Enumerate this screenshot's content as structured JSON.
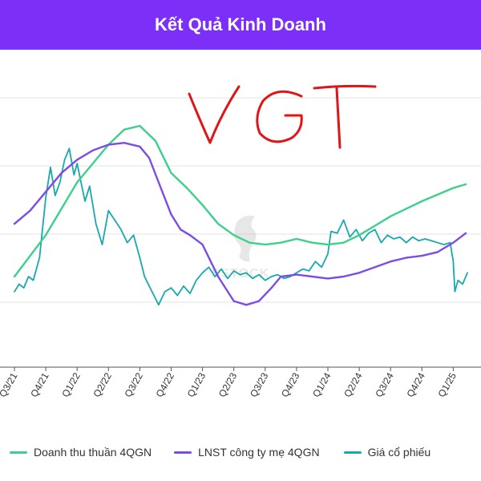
{
  "header": {
    "title": "Kết Quả Kinh Doanh"
  },
  "annotation": {
    "handwritten_text": "VGT",
    "color": "#e01515"
  },
  "watermark": {
    "text": "SSTOCK"
  },
  "colors": {
    "header_bg": "#7b2ff7",
    "grid": "#e3e3e3"
  },
  "chart_data": {
    "type": "line",
    "title": "Kết Quả Kinh Doanh",
    "xlabel": "",
    "ylabel": "",
    "x_tick_labels": [
      "Q3/21",
      "Q4/21",
      "Q1/22",
      "Q2/22",
      "Q3/22",
      "Q4/22",
      "Q1/23",
      "Q2/23",
      "Q3/23",
      "Q4/23",
      "Q1/24",
      "Q2/24",
      "Q3/24",
      "Q4/24",
      "Q1/25"
    ],
    "y_tick_labels_visible": false,
    "y_gridlines": 4,
    "grid": true,
    "legend_position": "bottom",
    "series": [
      {
        "name": "Doanh thu thuần 4QGN",
        "color": "#3dd08a",
        "x": [
          0.0,
          1.0,
          2.0,
          3.0,
          3.5,
          4.0,
          4.5,
          5.0,
          5.5,
          6.0,
          6.5,
          7.0,
          7.5,
          8.0,
          8.5,
          9.0,
          9.5,
          10.0,
          10.5,
          11.0,
          11.5,
          12.0,
          13.0,
          14.0,
          14.4
        ],
        "values": [
          20,
          42,
          70,
          90,
          98,
          100,
          92,
          75,
          67,
          58,
          48,
          42,
          38,
          37,
          38,
          40,
          38,
          37,
          38,
          42,
          47,
          52,
          60,
          67,
          69
        ]
      },
      {
        "name": "LNST công ty mẹ 4QGN",
        "color": "#7b4ce6",
        "x": [
          0.0,
          0.5,
          1.0,
          1.5,
          2.0,
          2.5,
          3.0,
          3.5,
          4.0,
          4.3,
          4.6,
          5.0,
          5.3,
          5.6,
          6.0,
          6.5,
          7.0,
          7.4,
          7.8,
          8.2,
          8.5,
          9.0,
          9.5,
          10.0,
          10.5,
          11.0,
          11.5,
          12.0,
          12.5,
          13.0,
          13.5,
          14.0,
          14.4
        ],
        "values": [
          48,
          55,
          65,
          75,
          82,
          87,
          90,
          91,
          89,
          83,
          70,
          53,
          45,
          42,
          37,
          20,
          7,
          5,
          7,
          14,
          20,
          21,
          20,
          19,
          20,
          22,
          25,
          28,
          30,
          31,
          33,
          38,
          43
        ]
      },
      {
        "name": "Giá cổ phiếu",
        "color": "#17a9ae",
        "x": [
          0.0,
          0.15,
          0.3,
          0.45,
          0.6,
          0.8,
          1.0,
          1.15,
          1.3,
          1.45,
          1.6,
          1.75,
          1.9,
          2.0,
          2.1,
          2.25,
          2.4,
          2.6,
          2.8,
          3.0,
          3.2,
          3.4,
          3.6,
          3.8,
          4.0,
          4.15,
          4.3,
          4.45,
          4.6,
          4.8,
          5.0,
          5.2,
          5.4,
          5.6,
          5.8,
          6.0,
          6.2,
          6.4,
          6.6,
          6.8,
          7.0,
          7.2,
          7.4,
          7.6,
          7.8,
          8.0,
          8.2,
          8.4,
          8.6,
          8.8,
          9.0,
          9.2,
          9.4,
          9.6,
          9.8,
          10.0,
          10.1,
          10.3,
          10.5,
          10.7,
          10.9,
          11.1,
          11.3,
          11.5,
          11.7,
          11.9,
          12.1,
          12.3,
          12.5,
          12.7,
          12.9,
          13.1,
          13.3,
          13.5,
          13.7,
          13.9,
          14.0,
          14.05,
          14.15,
          14.3,
          14.45
        ],
        "values": [
          12,
          16,
          14,
          20,
          18,
          30,
          62,
          78,
          63,
          70,
          82,
          88,
          74,
          80,
          72,
          60,
          68,
          48,
          37,
          55,
          50,
          45,
          38,
          42,
          30,
          20,
          15,
          10,
          5,
          12,
          14,
          10,
          15,
          11,
          18,
          22,
          25,
          20,
          24,
          19,
          23,
          21,
          22,
          19,
          21,
          18,
          20,
          21,
          19,
          20,
          22,
          24,
          23,
          28,
          25,
          32,
          44,
          43,
          50,
          41,
          45,
          39,
          43,
          45,
          38,
          42,
          40,
          41,
          38,
          41,
          39,
          40,
          39,
          38,
          37,
          38,
          28,
          12,
          18,
          16,
          22
        ]
      }
    ]
  }
}
